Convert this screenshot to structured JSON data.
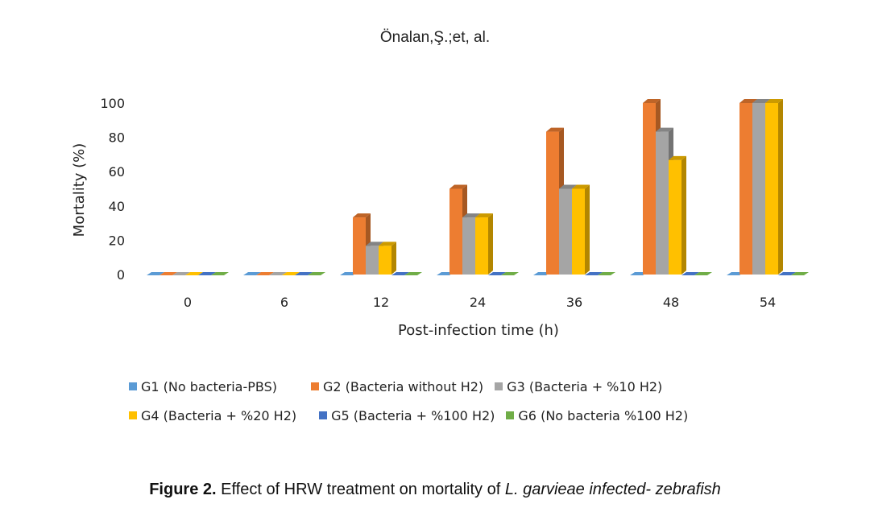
{
  "running_head": "Önalan,Ş.;et, al.",
  "caption": {
    "label": "Figure 2.",
    "text": " Effect of HRW treatment on mortality of ",
    "italic": "L. garvieae infected- zebrafish"
  },
  "chart_data": {
    "type": "bar",
    "style": "3d-clustered-column",
    "title": "",
    "xlabel": "Post-infection time (h)",
    "ylabel": "Mortality (%)",
    "categories": [
      "0",
      "6",
      "12",
      "24",
      "36",
      "48",
      "54"
    ],
    "ylim": [
      0,
      100
    ],
    "yticks": [
      0,
      20,
      40,
      60,
      80,
      100
    ],
    "grid": false,
    "legend_position": "bottom",
    "series": [
      {
        "name": "G1 (No bacteria-PBS)",
        "color": "#5B9BD5",
        "values": [
          0,
          0,
          0,
          0,
          0,
          0,
          0
        ]
      },
      {
        "name": "G2 (Bacteria without H2)",
        "color": "#ED7D31",
        "values": [
          0,
          0,
          33.3,
          50,
          83.3,
          100,
          100
        ]
      },
      {
        "name": "G3 (Bacteria + %10 H2)",
        "color": "#A5A5A5",
        "values": [
          0,
          0,
          16.7,
          33.3,
          50,
          83.3,
          100
        ]
      },
      {
        "name": "G4 (Bacteria + %20 H2)",
        "color": "#FFC000",
        "values": [
          0,
          0,
          16.7,
          33.3,
          50,
          66.7,
          100
        ]
      },
      {
        "name": "G5 (Bacteria + %100 H2)",
        "color": "#4472C4",
        "values": [
          0,
          0,
          0,
          0,
          0,
          0,
          0
        ]
      },
      {
        "name": "G6 (No bacteria %100 H2)",
        "color": "#70AD47",
        "values": [
          0,
          0,
          0,
          0,
          0,
          0,
          0
        ]
      }
    ]
  }
}
